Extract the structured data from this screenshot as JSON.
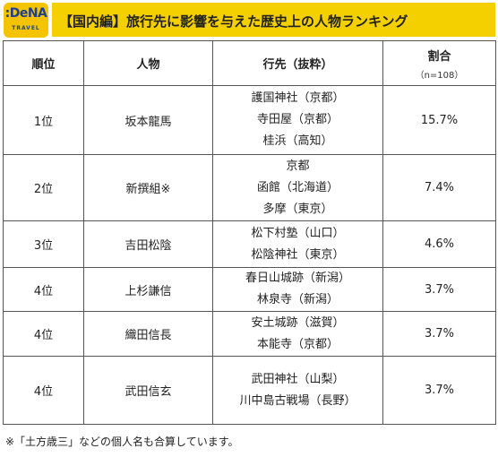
{
  "brand": {
    "logo_main": ":DeNA",
    "logo_sub": "TRAVEL"
  },
  "title": "【国内編】旅行先に影響を与えた歴史上の人物ランキング",
  "columns": {
    "rank": "順位",
    "person": "人物",
    "destinations": "行先（抜粋）",
    "share": "割合",
    "share_note": "（n=108）"
  },
  "rows": [
    {
      "rank": "1位",
      "person": "坂本龍馬",
      "destinations": [
        "護国神社（京都）",
        "寺田屋（京都）",
        "桂浜（高知）"
      ],
      "share": "15.7%"
    },
    {
      "rank": "2位",
      "person": "新撰組※",
      "destinations": [
        "京都",
        "函館（北海道）",
        "多摩（東京）"
      ],
      "share": "7.4%"
    },
    {
      "rank": "3位",
      "person": "吉田松陰",
      "destinations": [
        "松下村塾（山口）",
        "松陰神社（東京）"
      ],
      "share": "4.6%"
    },
    {
      "rank": "4位",
      "person": "上杉謙信",
      "destinations": [
        "春日山城跡（新潟）",
        "林泉寺（新潟）"
      ],
      "share": "3.7%"
    },
    {
      "rank": "4位",
      "person": "織田信長",
      "destinations": [
        "安土城跡（滋賀）",
        "本能寺（京都）"
      ],
      "share": "3.7%"
    },
    {
      "rank": "4位",
      "person": "武田信玄",
      "destinations": [
        "武田神社（山梨）",
        "川中島古戦場（長野）"
      ],
      "share": "3.7%"
    }
  ],
  "footnote": "※「土方歳三」などの個人名も合算しています。"
}
